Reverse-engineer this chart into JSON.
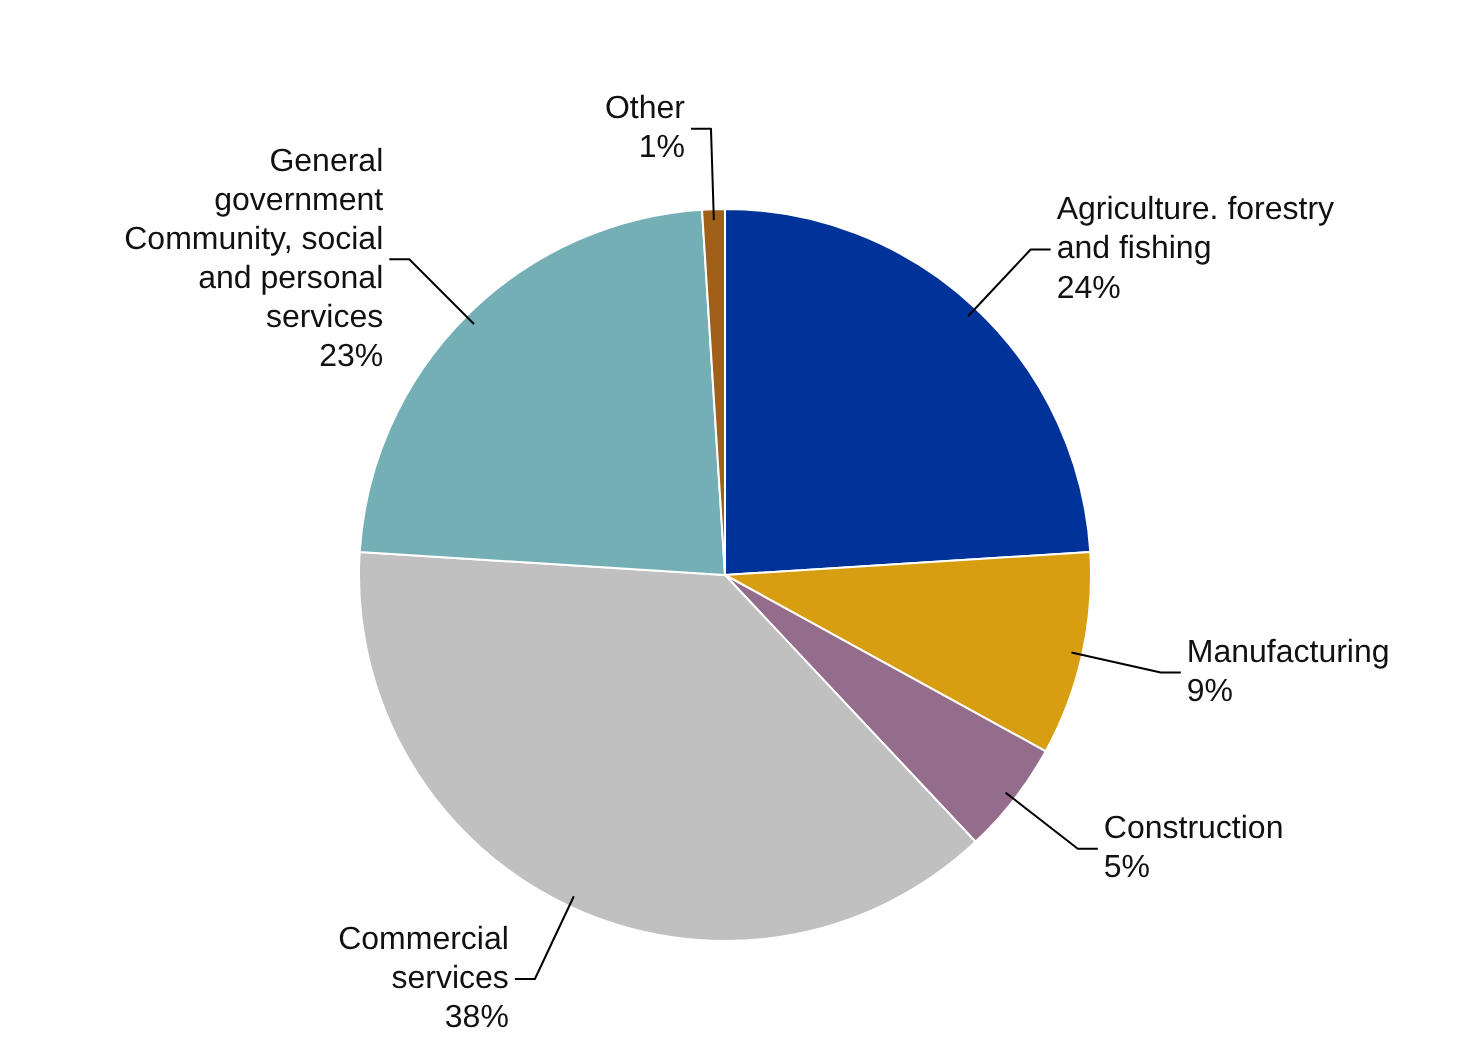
{
  "chart_data": {
    "type": "pie",
    "categories": [
      "Agriculture. forestry\nand fishing",
      "Manufacturing",
      "Construction",
      "Commercial\nservices",
      "General\ngovernment\nCommunity, social\nand personal\nservices",
      "Other"
    ],
    "values": [
      24,
      9,
      5,
      38,
      23,
      1
    ],
    "value_labels": [
      "24%",
      "9%",
      "5%",
      "38%",
      "23%",
      "1%"
    ],
    "colors": [
      "#003399",
      "#d69e10",
      "#956d8c",
      "#c0c0c0",
      "#74afb5",
      "#a1601a"
    ]
  }
}
